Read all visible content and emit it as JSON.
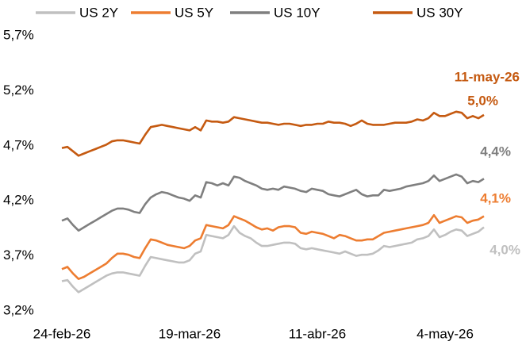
{
  "chart_data": {
    "type": "line",
    "categories": [
      "24-feb-26",
      null,
      null,
      null,
      null,
      null,
      null,
      null,
      null,
      null,
      null,
      null,
      null,
      null,
      null,
      null,
      null,
      null,
      null,
      null,
      null,
      null,
      null,
      "19-mar-26",
      null,
      null,
      null,
      null,
      null,
      null,
      null,
      null,
      null,
      null,
      null,
      null,
      null,
      null,
      null,
      null,
      null,
      null,
      null,
      null,
      null,
      null,
      "11-abr-26",
      null,
      null,
      null,
      null,
      null,
      null,
      null,
      null,
      null,
      null,
      null,
      null,
      null,
      null,
      null,
      null,
      null,
      null,
      null,
      null,
      null,
      null,
      "4-may-26",
      null,
      null,
      null,
      null,
      null,
      null,
      null
    ],
    "annotation": "11-may-26",
    "series": [
      {
        "name": "US 2Y",
        "color": "#c0c0c0",
        "values": [
          3.47,
          3.48,
          3.42,
          3.37,
          3.4,
          3.43,
          3.46,
          3.49,
          3.52,
          3.54,
          3.55,
          3.55,
          3.54,
          3.53,
          3.52,
          3.61,
          3.69,
          3.68,
          3.67,
          3.66,
          3.65,
          3.64,
          3.64,
          3.66,
          3.72,
          3.74,
          3.89,
          3.88,
          3.87,
          3.86,
          3.89,
          3.97,
          3.91,
          3.88,
          3.86,
          3.82,
          3.79,
          3.79,
          3.8,
          3.81,
          3.82,
          3.82,
          3.81,
          3.77,
          3.76,
          3.77,
          3.76,
          3.75,
          3.74,
          3.73,
          3.72,
          3.74,
          3.72,
          3.7,
          3.71,
          3.71,
          3.72,
          3.75,
          3.79,
          3.78,
          3.79,
          3.8,
          3.81,
          3.82,
          3.85,
          3.86,
          3.88,
          3.94,
          3.87,
          3.89,
          3.92,
          3.94,
          3.93,
          3.88,
          3.9,
          3.92,
          3.96
        ],
        "value_labels": [
          null,
          null,
          null,
          null,
          null,
          null,
          null,
          null,
          null,
          null,
          null,
          null,
          null,
          null,
          null,
          null,
          null,
          null,
          null,
          null,
          null,
          null,
          null,
          null,
          null,
          null,
          null,
          null,
          null,
          null,
          null,
          null,
          null,
          null,
          null,
          null,
          null,
          null,
          null,
          null,
          null,
          null,
          null,
          null,
          null,
          null,
          null,
          null,
          null,
          null,
          null,
          null,
          null,
          null,
          null,
          null,
          null,
          null,
          null,
          null,
          null,
          null,
          null,
          null,
          null,
          null,
          null,
          null,
          null,
          null,
          null,
          null,
          null,
          null,
          null,
          null,
          "4,0%"
        ]
      },
      {
        "name": "US 5Y",
        "color": "#ed7d31",
        "values": [
          3.58,
          3.6,
          3.54,
          3.49,
          3.51,
          3.54,
          3.57,
          3.6,
          3.63,
          3.68,
          3.72,
          3.72,
          3.71,
          3.69,
          3.68,
          3.77,
          3.85,
          3.84,
          3.82,
          3.8,
          3.79,
          3.78,
          3.77,
          3.79,
          3.84,
          3.86,
          3.98,
          3.97,
          3.96,
          3.95,
          3.98,
          4.06,
          4.04,
          4.02,
          3.99,
          3.96,
          3.94,
          3.95,
          3.93,
          3.96,
          3.97,
          3.97,
          3.96,
          3.91,
          3.9,
          3.92,
          3.91,
          3.9,
          3.88,
          3.86,
          3.89,
          3.88,
          3.86,
          3.84,
          3.84,
          3.85,
          3.85,
          3.88,
          3.91,
          3.92,
          3.93,
          3.94,
          3.95,
          3.96,
          3.97,
          3.98,
          4.0,
          4.07,
          4.0,
          4.02,
          4.04,
          4.06,
          4.05,
          4.0,
          4.02,
          4.03,
          4.06
        ],
        "value_labels": [
          null,
          null,
          null,
          null,
          null,
          null,
          null,
          null,
          null,
          null,
          null,
          null,
          null,
          null,
          null,
          null,
          null,
          null,
          null,
          null,
          null,
          null,
          null,
          null,
          null,
          null,
          null,
          null,
          null,
          null,
          null,
          null,
          null,
          null,
          null,
          null,
          null,
          null,
          null,
          null,
          null,
          null,
          null,
          null,
          null,
          null,
          null,
          null,
          null,
          null,
          null,
          null,
          null,
          null,
          null,
          null,
          null,
          null,
          null,
          null,
          null,
          null,
          null,
          null,
          null,
          null,
          null,
          null,
          null,
          null,
          null,
          null,
          null,
          null,
          null,
          null,
          "4,1%"
        ]
      },
      {
        "name": "US 10Y",
        "color": "#7f7f7f",
        "values": [
          4.02,
          4.04,
          3.98,
          3.93,
          3.96,
          3.99,
          4.02,
          4.05,
          4.08,
          4.11,
          4.13,
          4.13,
          4.12,
          4.1,
          4.09,
          4.17,
          4.23,
          4.26,
          4.28,
          4.27,
          4.25,
          4.23,
          4.22,
          4.2,
          4.25,
          4.23,
          4.37,
          4.36,
          4.34,
          4.36,
          4.34,
          4.42,
          4.41,
          4.38,
          4.36,
          4.34,
          4.31,
          4.3,
          4.31,
          4.3,
          4.33,
          4.32,
          4.31,
          4.29,
          4.28,
          4.31,
          4.3,
          4.29,
          4.26,
          4.25,
          4.24,
          4.26,
          4.28,
          4.3,
          4.26,
          4.24,
          4.25,
          4.25,
          4.3,
          4.29,
          4.3,
          4.31,
          4.33,
          4.34,
          4.35,
          4.36,
          4.38,
          4.43,
          4.38,
          4.4,
          4.42,
          4.44,
          4.42,
          4.36,
          4.38,
          4.37,
          4.4
        ],
        "value_labels": [
          null,
          null,
          null,
          null,
          null,
          null,
          null,
          null,
          null,
          null,
          null,
          null,
          null,
          null,
          null,
          null,
          null,
          null,
          null,
          null,
          null,
          null,
          null,
          null,
          null,
          null,
          null,
          null,
          null,
          null,
          null,
          null,
          null,
          null,
          null,
          null,
          null,
          null,
          null,
          null,
          null,
          null,
          null,
          null,
          null,
          null,
          null,
          null,
          null,
          null,
          null,
          null,
          null,
          null,
          null,
          null,
          null,
          null,
          null,
          null,
          null,
          null,
          null,
          null,
          null,
          null,
          null,
          null,
          null,
          null,
          null,
          null,
          null,
          null,
          null,
          null,
          "4,4%"
        ]
      },
      {
        "name": "US 30Y",
        "color": "#c55a11",
        "values": [
          4.68,
          4.69,
          4.65,
          4.61,
          4.63,
          4.65,
          4.67,
          4.69,
          4.71,
          4.74,
          4.75,
          4.75,
          4.74,
          4.73,
          4.72,
          4.8,
          4.87,
          4.88,
          4.89,
          4.88,
          4.87,
          4.86,
          4.85,
          4.84,
          4.87,
          4.84,
          4.93,
          4.92,
          4.92,
          4.91,
          4.92,
          4.96,
          4.95,
          4.94,
          4.93,
          4.92,
          4.91,
          4.91,
          4.9,
          4.89,
          4.9,
          4.9,
          4.89,
          4.88,
          4.89,
          4.89,
          4.9,
          4.9,
          4.92,
          4.91,
          4.91,
          4.9,
          4.88,
          4.9,
          4.93,
          4.9,
          4.89,
          4.89,
          4.89,
          4.9,
          4.91,
          4.91,
          4.91,
          4.92,
          4.94,
          4.93,
          4.95,
          5.0,
          4.97,
          4.97,
          4.99,
          5.01,
          5.0,
          4.95,
          4.97,
          4.95,
          4.98
        ],
        "value_labels": [
          null,
          null,
          null,
          null,
          null,
          null,
          null,
          null,
          null,
          null,
          null,
          null,
          null,
          null,
          null,
          null,
          null,
          null,
          null,
          null,
          null,
          null,
          null,
          null,
          null,
          null,
          null,
          null,
          null,
          null,
          null,
          null,
          null,
          null,
          null,
          null,
          null,
          null,
          null,
          null,
          null,
          null,
          null,
          null,
          null,
          null,
          null,
          null,
          null,
          null,
          null,
          null,
          null,
          null,
          null,
          null,
          null,
          null,
          null,
          null,
          null,
          null,
          null,
          null,
          null,
          null,
          null,
          null,
          null,
          null,
          null,
          null,
          null,
          null,
          null,
          null,
          "5,0%"
        ]
      }
    ],
    "ylim": [
      3.2,
      5.7
    ],
    "yticks": [
      {
        "value": 3.2,
        "label": "3,2%"
      },
      {
        "value": 3.7,
        "label": "3,7%"
      },
      {
        "value": 4.2,
        "label": "4,2%"
      },
      {
        "value": 4.7,
        "label": "4,7%"
      },
      {
        "value": 5.2,
        "label": "5,2%"
      },
      {
        "value": 5.7,
        "label": "5,7%"
      }
    ],
    "grid": false,
    "legend": "top"
  }
}
